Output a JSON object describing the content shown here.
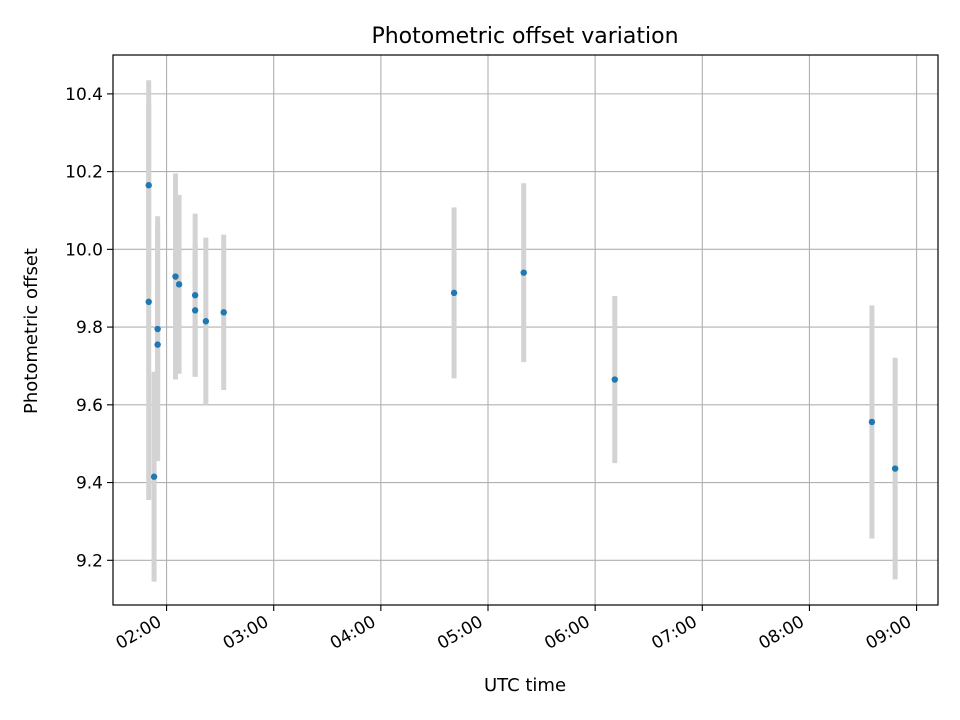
{
  "chart_data": {
    "type": "scatter",
    "title": "Photometric offset variation",
    "xlabel": "UTC time",
    "ylabel": "Photometric offset",
    "x_ticks": [
      "02:00",
      "03:00",
      "04:00",
      "05:00",
      "06:00",
      "07:00",
      "08:00",
      "09:00"
    ],
    "y_ticks": [
      "9.2",
      "9.4",
      "9.6",
      "9.8",
      "10.0",
      "10.2",
      "10.4"
    ],
    "xlim": [
      "01:30",
      "09:12"
    ],
    "ylim": [
      9.085,
      10.5
    ],
    "grid": true,
    "point_color": "#1f77b4",
    "errorbar_color": "#d3d3d3",
    "series": [
      {
        "points": [
          {
            "x": "01:50",
            "y": 10.165,
            "err": 0.27
          },
          {
            "x": "01:50",
            "y": 9.865,
            "err": 0.51
          },
          {
            "x": "01:53",
            "y": 9.415,
            "err": 0.27
          },
          {
            "x": "01:55",
            "y": 9.795,
            "err": 0.29
          },
          {
            "x": "01:55",
            "y": 9.755,
            "err": 0.3
          },
          {
            "x": "02:05",
            "y": 9.93,
            "err": 0.265
          },
          {
            "x": "02:07",
            "y": 9.91,
            "err": 0.23
          },
          {
            "x": "02:16",
            "y": 9.882,
            "err": 0.21
          },
          {
            "x": "02:16",
            "y": 9.843,
            "err": 0.17
          },
          {
            "x": "02:22",
            "y": 9.815,
            "err": 0.215
          },
          {
            "x": "02:32",
            "y": 9.838,
            "err": 0.2
          },
          {
            "x": "04:41",
            "y": 9.888,
            "err": 0.22
          },
          {
            "x": "05:20",
            "y": 9.94,
            "err": 0.23
          },
          {
            "x": "06:11",
            "y": 9.665,
            "err": 0.215
          },
          {
            "x": "08:35",
            "y": 9.556,
            "err": 0.3
          },
          {
            "x": "08:48",
            "y": 9.436,
            "err": 0.285
          }
        ]
      }
    ]
  }
}
